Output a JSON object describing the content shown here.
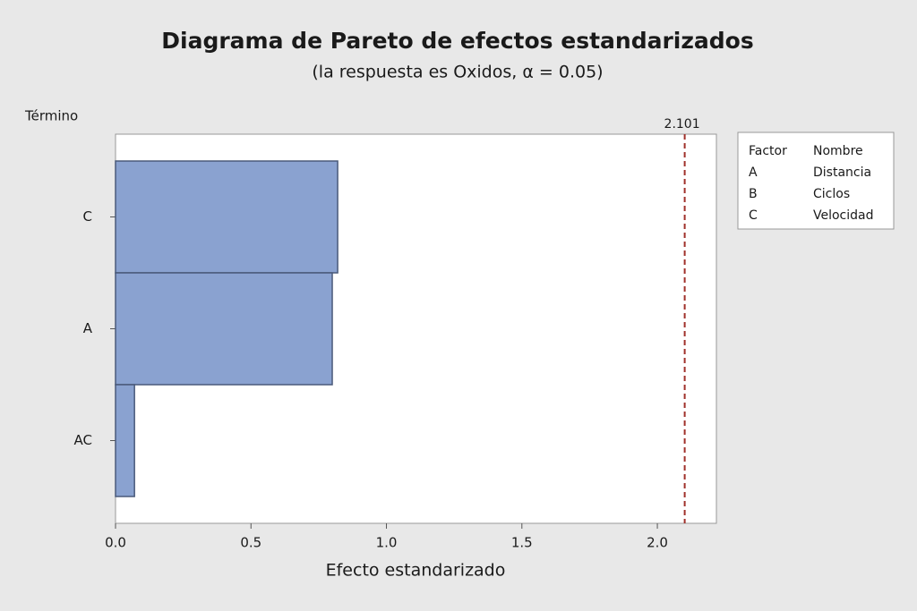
{
  "chart_data": {
    "type": "bar",
    "orientation": "horizontal",
    "title": "Diagrama de Pareto de efectos estandarizados",
    "subtitle": "(la respuesta es Oxidos, α = 0.05)",
    "y_label": "Término",
    "x_label": "Efecto estandarizado",
    "categories": [
      "C",
      "A",
      "AC"
    ],
    "values": [
      0.82,
      0.8,
      0.07
    ],
    "color": "#8aa2d0",
    "xlim": [
      0,
      2.218
    ],
    "xticks": [
      {
        "value": 0,
        "label": "0.0"
      },
      0.5,
      {
        "value": 1,
        "label": "1.0"
      },
      1.5,
      {
        "value": 2,
        "label": "2.0"
      }
    ],
    "reference_line": 2.101,
    "reference_color": "#a0302a",
    "factor_table": {
      "header": [
        "Factor",
        "Nombre"
      ],
      "rows": [
        [
          "A",
          "Distancia"
        ],
        [
          "B",
          "Ciclos"
        ],
        [
          "C",
          "Velocidad"
        ]
      ]
    }
  }
}
